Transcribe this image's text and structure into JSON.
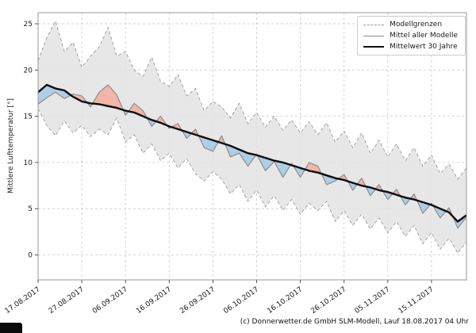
{
  "chart": {
    "ylabel": "Mittlere Lufttemperatur [°]",
    "caption": "(c) Donnerwetter.de GmbH SLM-Modell, Lauf 18.08.2017 04 Uhr"
  },
  "legend": {
    "items": [
      {
        "label": "Modellgrenzen",
        "style": "dashed-gray"
      },
      {
        "label": "Mittel aller Modelle",
        "style": "solid-gray"
      },
      {
        "label": "Mittelwert 30 Jahre",
        "style": "thick-black"
      }
    ]
  },
  "chart_data": {
    "type": "line",
    "title": "",
    "xlabel": "",
    "ylabel": "Mittlere Lufttemperatur [°]",
    "x_unit": "days since 17.08.2017",
    "xlim": [
      0,
      98
    ],
    "ylim": [
      -2.7,
      26.2
    ],
    "grid": true,
    "legend_position": "upper right",
    "yticks": [
      0,
      5,
      10,
      15,
      20,
      25
    ],
    "xtick_positions": [
      0,
      10,
      20,
      30,
      40,
      50,
      60,
      70,
      80,
      90
    ],
    "xtick_labels": [
      "17.08.2017",
      "27.08.2017",
      "06.09.2017",
      "16.09.2017",
      "26.09.2017",
      "06.10.2017",
      "16.10.2017",
      "26.10.2017",
      "05.11.2017",
      "15.11.2017"
    ],
    "x": [
      0,
      2,
      4,
      6,
      8,
      10,
      12,
      14,
      16,
      18,
      20,
      22,
      24,
      26,
      28,
      30,
      32,
      34,
      36,
      38,
      40,
      42,
      44,
      46,
      48,
      50,
      52,
      54,
      56,
      58,
      60,
      62,
      64,
      66,
      68,
      70,
      72,
      74,
      76,
      78,
      80,
      82,
      84,
      86,
      88,
      90,
      92,
      94,
      96,
      98
    ],
    "series": [
      {
        "name": "Modellgrenzen (oben)",
        "values": [
          21.0,
          23.5,
          25.3,
          22.0,
          23.0,
          20.3,
          21.5,
          22.5,
          24.6,
          21.5,
          22.0,
          20.0,
          19.3,
          21.4,
          18.8,
          18.2,
          19.5,
          17.2,
          18.0,
          15.6,
          16.6,
          16.0,
          14.8,
          16.4,
          14.2,
          15.4,
          13.8,
          15.0,
          13.5,
          14.6,
          13.2,
          14.4,
          13.0,
          14.3,
          12.2,
          13.4,
          11.6,
          13.2,
          11.0,
          12.4,
          10.6,
          12.0,
          10.2,
          11.6,
          9.6,
          10.8,
          8.8,
          9.8,
          8.2,
          9.4
        ]
      },
      {
        "name": "Modellgrenzen (unten)",
        "values": [
          15.8,
          14.0,
          12.9,
          14.5,
          13.2,
          14.0,
          12.8,
          13.6,
          13.0,
          14.8,
          12.2,
          13.0,
          11.0,
          12.0,
          10.2,
          11.0,
          9.4,
          10.4,
          8.8,
          8.0,
          9.0,
          8.2,
          6.6,
          7.6,
          5.8,
          7.0,
          5.2,
          6.4,
          4.8,
          6.0,
          4.4,
          5.6,
          4.8,
          5.8,
          3.6,
          4.8,
          3.2,
          4.4,
          2.8,
          4.0,
          2.4,
          3.6,
          2.0,
          3.2,
          1.2,
          2.4,
          0.6,
          1.8,
          0.2,
          1.4
        ]
      },
      {
        "name": "Mittel aller Modelle",
        "values": [
          16.3,
          17.0,
          17.6,
          16.9,
          17.4,
          17.2,
          16.0,
          17.6,
          18.4,
          17.3,
          15.1,
          16.4,
          15.6,
          13.9,
          15.0,
          13.7,
          14.2,
          12.6,
          13.6,
          11.6,
          11.2,
          12.9,
          10.6,
          11.0,
          9.6,
          10.9,
          9.1,
          10.1,
          8.4,
          9.9,
          8.4,
          10.0,
          9.6,
          7.6,
          8.0,
          8.7,
          7.0,
          8.3,
          6.4,
          7.6,
          6.0,
          7.1,
          5.4,
          6.6,
          4.5,
          5.6,
          4.0,
          5.1,
          2.9,
          4.1
        ]
      },
      {
        "name": "Mittelwert 30 Jahre",
        "values": [
          17.6,
          18.4,
          18.0,
          17.8,
          17.1,
          16.6,
          16.4,
          16.3,
          16.1,
          15.9,
          15.6,
          15.4,
          15.0,
          14.6,
          14.3,
          13.9,
          13.6,
          13.3,
          13.0,
          12.7,
          12.4,
          12.1,
          11.8,
          11.4,
          11.0,
          10.8,
          10.5,
          10.2,
          10.0,
          9.7,
          9.4,
          9.1,
          8.9,
          8.6,
          8.3,
          8.1,
          7.8,
          7.5,
          7.3,
          7.0,
          6.8,
          6.5,
          6.2,
          6.0,
          5.7,
          5.4,
          5.0,
          4.6,
          3.6,
          4.3
        ]
      }
    ],
    "colors": {
      "envelope_fill": "#e3e3e3",
      "envelope_line": "#9c9c9c",
      "model_mean_line": "#8c8c8c",
      "mean30_line": "#0d0d0d",
      "above_fill": "#f2b0a2",
      "below_fill": "#a7cbe4",
      "grid_line": "#c9c9c9",
      "axis_border": "#999999",
      "tick_text": "#1a1a1a"
    }
  }
}
